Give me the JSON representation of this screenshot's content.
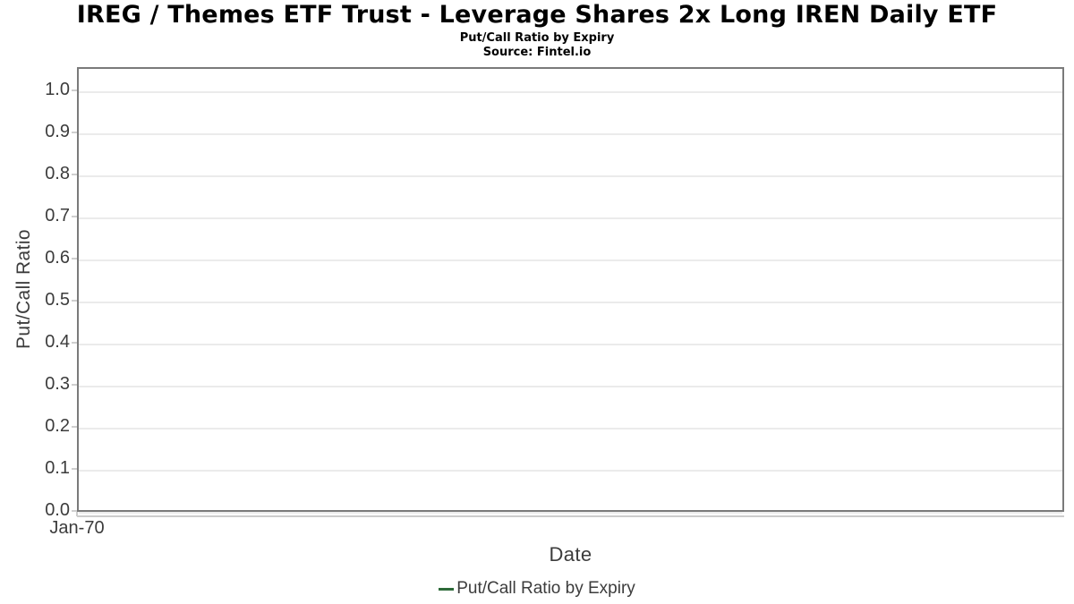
{
  "chart_data": {
    "type": "line",
    "title": "IREG / Themes ETF Trust - Leverage Shares 2x Long IREN Daily ETF",
    "subtitle": "Put/Call Ratio by Expiry",
    "source": "Source: Fintel.io",
    "xlabel": "Date",
    "ylabel": "Put/Call Ratio",
    "x_tick_labels": [
      "Jan-70"
    ],
    "y_tick_labels": [
      "0.0",
      "0.1",
      "0.2",
      "0.3",
      "0.4",
      "0.5",
      "0.6",
      "0.7",
      "0.8",
      "0.9",
      "1.0"
    ],
    "ylim": [
      0.0,
      1.055
    ],
    "grid": true,
    "legend": {
      "position": "bottom-center",
      "entries": [
        {
          "label": "Put/Call Ratio by Expiry",
          "marker": "line",
          "color": "#2d6a39"
        }
      ]
    },
    "series": [
      {
        "name": "Put/Call Ratio by Expiry",
        "color": "#2d6a39",
        "x": [],
        "y": []
      }
    ]
  },
  "colors": {
    "background": "#ffffff",
    "plot_border": "#7a7a7a",
    "gridline": "#ebebeb",
    "axis_line": "#cccccc",
    "tick_text": "#3c3c3c",
    "title_text": "#000000",
    "legend_marker": "#2d6a39"
  }
}
